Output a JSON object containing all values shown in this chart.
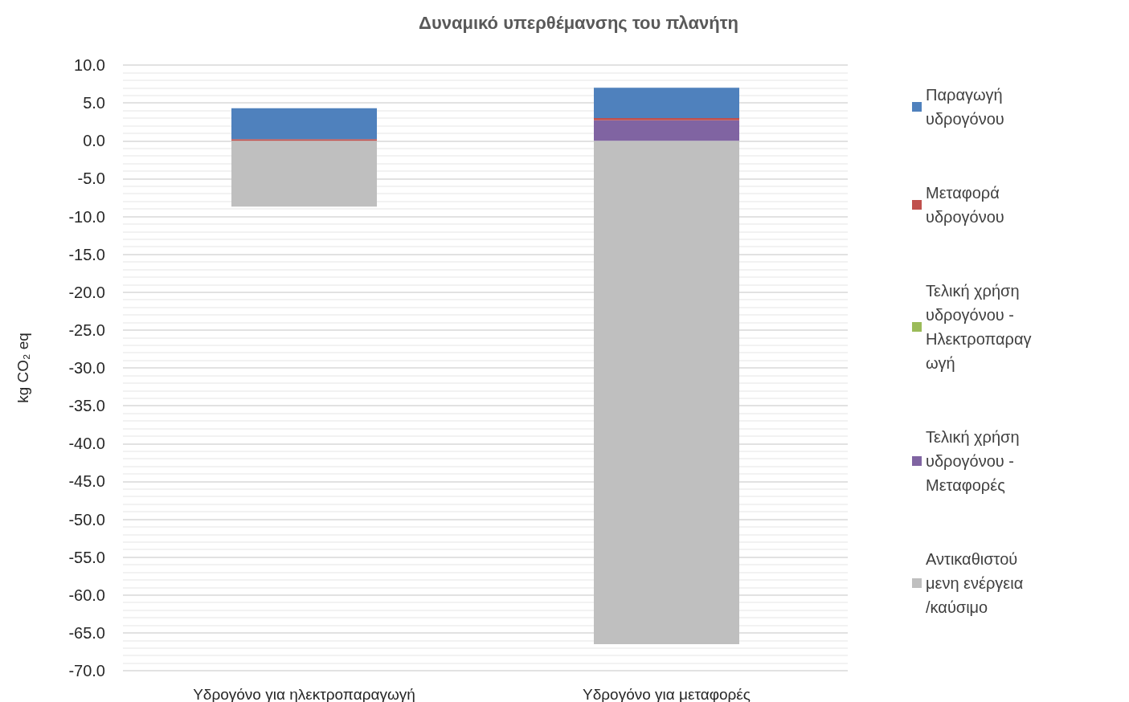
{
  "chart_data": {
    "type": "bar",
    "title": "Δυναμικό υπερθέμανσης του πλανήτη",
    "ylabel": "kg CO₂ eq",
    "categories": [
      "Υδρογόνο για ηλεκτροπαραγωγή",
      "Υδρογόνο για μεταφορές"
    ],
    "stacked": true,
    "grid": "y",
    "legend": "right",
    "ylim": [
      -70,
      10
    ],
    "yticks": [
      {
        "value": 10,
        "label": "10.0"
      },
      {
        "value": 5,
        "label": "5.0"
      },
      {
        "value": 0,
        "label": "0.0"
      },
      {
        "value": -5,
        "label": "-5.0"
      },
      {
        "value": -10,
        "label": "-10.0"
      },
      {
        "value": -15,
        "label": "-15.0"
      },
      {
        "value": -20,
        "label": "-20.0"
      },
      {
        "value": -25,
        "label": "-25.0"
      },
      {
        "value": -30,
        "label": "-30.0"
      },
      {
        "value": -35,
        "label": "-35.0"
      },
      {
        "value": -40,
        "label": "-40.0"
      },
      {
        "value": -45,
        "label": "-45.0"
      },
      {
        "value": -50,
        "label": "-50.0"
      },
      {
        "value": -55,
        "label": "-55.0"
      },
      {
        "value": -60,
        "label": "-60.0"
      },
      {
        "value": -65,
        "label": "-65.0"
      },
      {
        "value": -70,
        "label": "-70.0"
      }
    ],
    "series": [
      {
        "name": "Αντικαθιστούμενη ενέργεια/καύσιμο",
        "color": "#bfbfbf",
        "values": [
          -8.7,
          -66.5
        ]
      },
      {
        "name": "Τελική χρήση υδρογόνου - Μεταφορές",
        "color": "#8064a2",
        "values": [
          null,
          2.7
        ]
      },
      {
        "name": "Τελική χρήση υδρογόνου - Ηλεκτροπαραγωγή",
        "color": "#9bbb59",
        "values": [
          null,
          null
        ]
      },
      {
        "name": "Μεταφορά υδρογόνου",
        "color": "#c0504d",
        "values": [
          0.2,
          0.3
        ]
      },
      {
        "name": "Παραγωγή υδρογόνου",
        "color": "#4f81bd",
        "values": [
          4.1,
          4.0
        ]
      }
    ]
  }
}
